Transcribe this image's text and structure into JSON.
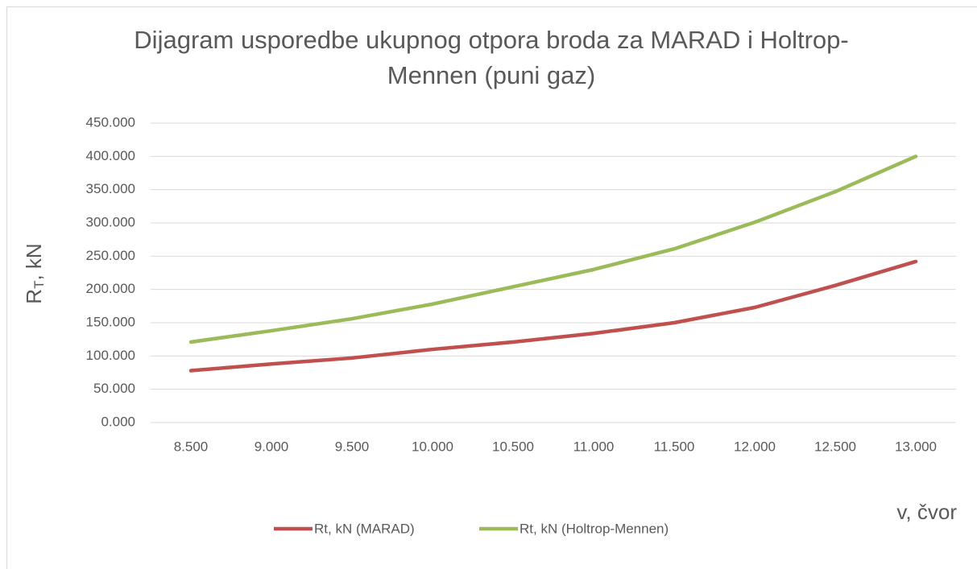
{
  "chart_data": {
    "type": "line",
    "title": "Dijagram usporedbe ukupnog otpora broda za MARAD i Holtrop-Mennen (puni gaz)",
    "x_label": "v, čvor",
    "y_label": [
      "R",
      "T",
      ", kN"
    ],
    "categories": [
      "8.500",
      "9.000",
      "9.500",
      "10.000",
      "10.500",
      "11.000",
      "11.500",
      "12.000",
      "12.500",
      "13.000"
    ],
    "series": [
      {
        "name": "Rt, kN (MARAD)",
        "color": "#c0504d",
        "values": [
          78,
          88,
          97,
          110,
          121,
          134,
          150,
          173,
          206,
          242
        ]
      },
      {
        "name": "Rt, kN (Holtrop-Mennen)",
        "color": "#9bbb59",
        "values": [
          121,
          138,
          156,
          178,
          204,
          230,
          261,
          301,
          347,
          400
        ]
      }
    ],
    "ylim": [
      0,
      450
    ],
    "yticks": [
      {
        "value": 0,
        "label": "0.000"
      },
      {
        "value": 50,
        "label": "50.000"
      },
      {
        "value": 100,
        "label": "100.000"
      },
      {
        "value": 150,
        "label": "150.000"
      },
      {
        "value": 200,
        "label": "200.000"
      },
      {
        "value": 250,
        "label": "250.000"
      },
      {
        "value": 300,
        "label": "300.000"
      },
      {
        "value": 350,
        "label": "350.000"
      },
      {
        "value": 400,
        "label": "400.000"
      },
      {
        "value": 450,
        "label": "450.000"
      }
    ],
    "grid": true,
    "legend": "bottom"
  }
}
